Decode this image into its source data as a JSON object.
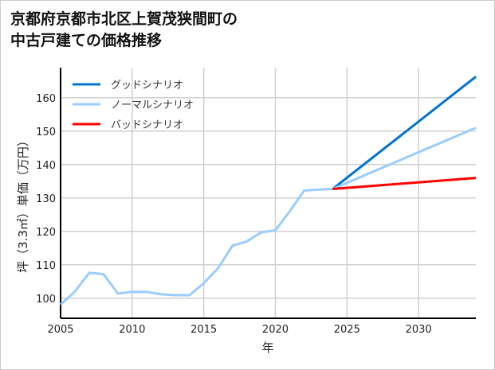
{
  "chart_data": {
    "type": "line",
    "title": "京都府京都市北区上賀茂狭間町の\n中古戸建ての価格推移",
    "xlabel": "年",
    "ylabel": "坪（3.3㎡）単価（万円）",
    "xlim": [
      2005,
      2034
    ],
    "ylim": [
      94,
      169
    ],
    "xticks": [
      2005,
      2010,
      2015,
      2020,
      2025,
      2030
    ],
    "yticks": [
      100,
      110,
      120,
      130,
      140,
      150,
      160
    ],
    "grid": true,
    "legend_position": "top-left",
    "history": {
      "x": [
        2005,
        2006,
        2007,
        2008,
        2009,
        2010,
        2011,
        2012,
        2013,
        2014,
        2015,
        2016,
        2017,
        2018,
        2019,
        2020,
        2021,
        2022,
        2023,
        2024
      ],
      "y": [
        98.1,
        102,
        107.6,
        107.2,
        101.4,
        101.9,
        101.9,
        101.2,
        100.9,
        100.9,
        104.5,
        109,
        115.7,
        117,
        119.7,
        120.3,
        126,
        132.2,
        132.5,
        132.7
      ],
      "color": "#99ccff"
    },
    "series": [
      {
        "name": "グッドシナリオ",
        "x": [
          2024,
          2034
        ],
        "y": [
          132.7,
          166.3
        ],
        "color": "#0073cc"
      },
      {
        "name": "ノーマルシナリオ",
        "x": [
          2024,
          2034
        ],
        "y": [
          132.7,
          151
        ],
        "color": "#99ccff"
      },
      {
        "name": "バッドシナリオ",
        "x": [
          2024,
          2034
        ],
        "y": [
          132.7,
          136
        ],
        "color": "#ff0000"
      }
    ]
  }
}
